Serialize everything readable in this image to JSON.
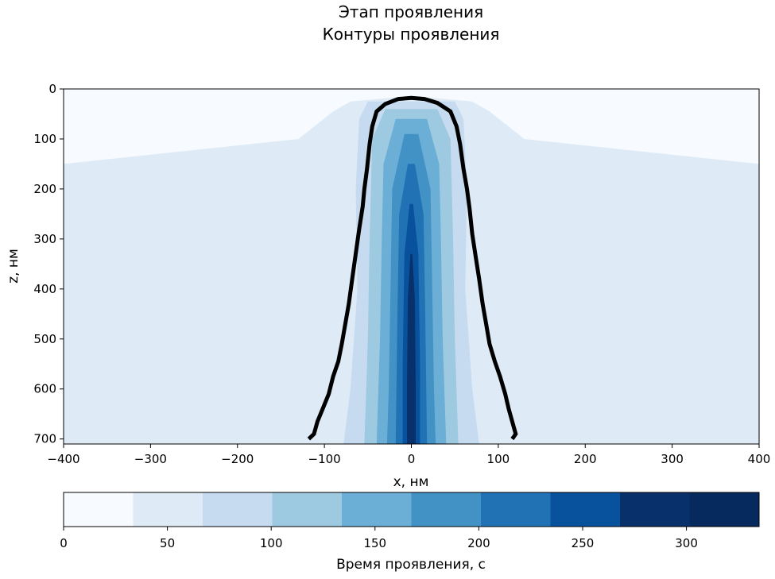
{
  "chart_data": {
    "type": "heatmap",
    "title": [
      "Этап проявления",
      "Контуры проявления"
    ],
    "xlabel": "x, нм",
    "ylabel": "z, нм",
    "xlim": [
      -400,
      400
    ],
    "ylim": [
      710,
      0
    ],
    "y_inverted": true,
    "x_ticks": [
      "−400",
      "−300",
      "−200",
      "−100",
      "0",
      "100",
      "200",
      "300",
      "400"
    ],
    "y_ticks": [
      "0",
      "100",
      "200",
      "300",
      "400",
      "500",
      "600",
      "700"
    ],
    "colormap": "Blues",
    "colorbar": {
      "label": "Время проявления, с",
      "range": [
        0,
        335
      ],
      "levels": [
        0,
        33.5,
        67,
        100.5,
        134,
        167.5,
        201,
        234.5,
        268,
        301.5,
        335
      ],
      "ticks": [
        "0",
        "50",
        "100",
        "150",
        "200",
        "250",
        "300"
      ],
      "colors": [
        "#f7fbff",
        "#deebf7",
        "#c6dbef",
        "#9ecae1",
        "#6baed6",
        "#4292c6",
        "#2171b5",
        "#08519c",
        "#08306b",
        "#062a5e"
      ]
    },
    "field_bands": [
      {
        "level": 1,
        "half_widths": [
          [
            15,
            5
          ],
          [
            25,
            70
          ],
          [
            45,
            90
          ],
          [
            100,
            130
          ],
          [
            150,
            400
          ],
          [
            446,
            400
          ],
          [
            710,
            400
          ]
        ]
      },
      {
        "level": 2,
        "half_widths": [
          [
            25,
            50
          ],
          [
            60,
            60
          ],
          [
            200,
            64
          ],
          [
            400,
            62
          ],
          [
            600,
            70
          ],
          [
            710,
            78
          ]
        ]
      },
      {
        "level": 3,
        "half_widths": [
          [
            40,
            30
          ],
          [
            100,
            45
          ],
          [
            300,
            48
          ],
          [
            500,
            50
          ],
          [
            710,
            54
          ]
        ]
      },
      {
        "level": 4,
        "half_widths": [
          [
            60,
            18
          ],
          [
            150,
            32
          ],
          [
            300,
            34
          ],
          [
            500,
            36
          ],
          [
            710,
            40
          ]
        ]
      },
      {
        "level": 5,
        "half_widths": [
          [
            90,
            8
          ],
          [
            200,
            22
          ],
          [
            400,
            24
          ],
          [
            600,
            26
          ],
          [
            710,
            28
          ]
        ]
      },
      {
        "level": 6,
        "half_widths": [
          [
            150,
            4
          ],
          [
            250,
            14
          ],
          [
            450,
            16
          ],
          [
            710,
            18
          ]
        ]
      },
      {
        "level": 7,
        "half_widths": [
          [
            230,
            2
          ],
          [
            330,
            8
          ],
          [
            550,
            10
          ],
          [
            710,
            10
          ]
        ]
      },
      {
        "level": 8,
        "half_widths": [
          [
            330,
            1
          ],
          [
            420,
            4
          ],
          [
            600,
            5
          ],
          [
            710,
            5
          ]
        ]
      }
    ],
    "contour": {
      "color": "#000000",
      "points": [
        [
          -118,
          700
        ],
        [
          -112,
          690
        ],
        [
          -108,
          665
        ],
        [
          -102,
          640
        ],
        [
          -95,
          610
        ],
        [
          -90,
          575
        ],
        [
          -84,
          545
        ],
        [
          -80,
          510
        ],
        [
          -76,
          470
        ],
        [
          -72,
          430
        ],
        [
          -68,
          380
        ],
        [
          -64,
          330
        ],
        [
          -60,
          280
        ],
        [
          -56,
          235
        ],
        [
          -54,
          200
        ],
        [
          -51,
          160
        ],
        [
          -48,
          110
        ],
        [
          -45,
          75
        ],
        [
          -40,
          45
        ],
        [
          -30,
          30
        ],
        [
          -15,
          20
        ],
        [
          0,
          18
        ],
        [
          15,
          20
        ],
        [
          30,
          28
        ],
        [
          45,
          45
        ],
        [
          52,
          75
        ],
        [
          56,
          110
        ],
        [
          60,
          160
        ],
        [
          64,
          200
        ],
        [
          67,
          240
        ],
        [
          70,
          290
        ],
        [
          74,
          335
        ],
        [
          78,
          380
        ],
        [
          82,
          430
        ],
        [
          86,
          470
        ],
        [
          90,
          510
        ],
        [
          96,
          545
        ],
        [
          102,
          575
        ],
        [
          108,
          610
        ],
        [
          112,
          640
        ],
        [
          116,
          665
        ],
        [
          120,
          690
        ],
        [
          116,
          700
        ]
      ]
    }
  }
}
